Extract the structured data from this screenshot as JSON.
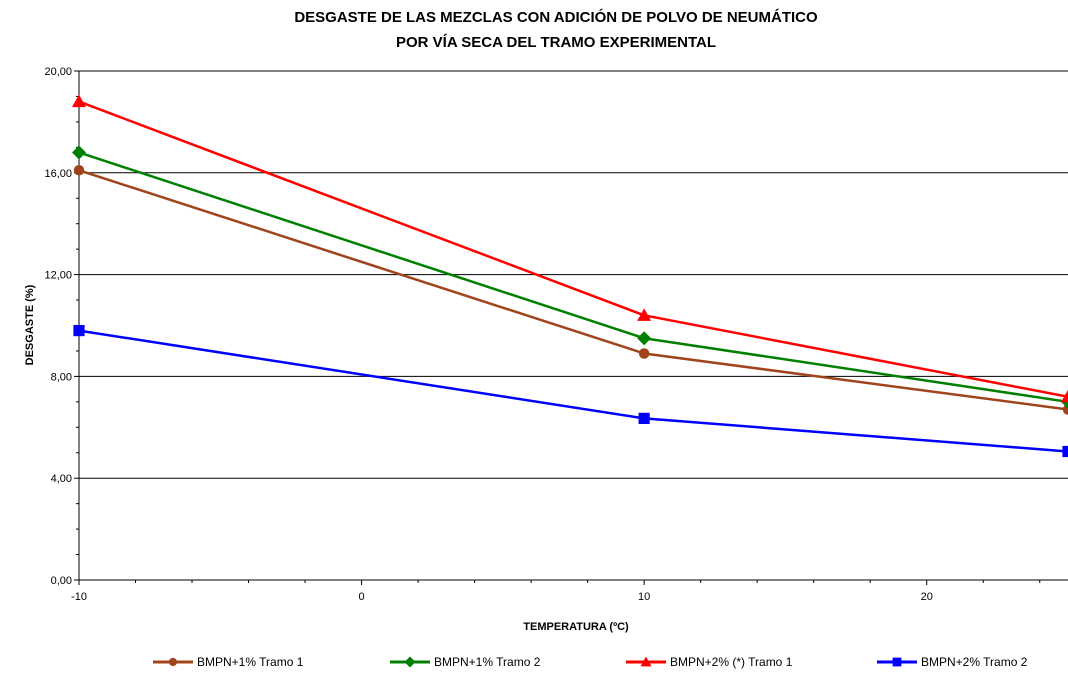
{
  "chart_data": {
    "type": "line",
    "title": [
      "DESGASTE DE LAS MEZCLAS CON ADICIÓN DE POLVO DE NEUMÁTICO",
      "POR VÍA SECA DEL TRAMO EXPERIMENTAL"
    ],
    "xlabel": "TEMPERATURA (ºC)",
    "ylabel": "DESGASTE (%)",
    "xlim": [
      -10,
      25
    ],
    "ylim": [
      0,
      20
    ],
    "x_ticks": [
      -10,
      0,
      10,
      20
    ],
    "x_tick_labels": [
      "-10",
      "0",
      "10",
      "20"
    ],
    "y_ticks": [
      0,
      4,
      8,
      12,
      16,
      20
    ],
    "y_tick_labels": [
      "0,00",
      "4,00",
      "8,00",
      "12,00",
      "16,00",
      "20,00"
    ],
    "grid": "horizontal",
    "legend_position": "bottom",
    "x": [
      -10,
      10,
      25
    ],
    "series": [
      {
        "name": "BMPN+1% Tramo 1",
        "color": "#a0441c",
        "marker": "circle",
        "values": [
          16.1,
          8.9,
          6.7
        ]
      },
      {
        "name": "BMPN+1% Tramo 2",
        "color": "#008000",
        "marker": "diamond",
        "values": [
          16.8,
          9.5,
          7.0
        ]
      },
      {
        "name": "BMPN+2% (*) Tramo 1",
        "color": "#ff0000",
        "marker": "triangle",
        "values": [
          18.8,
          10.4,
          7.2
        ]
      },
      {
        "name": "BMPN+2% Tramo 2",
        "color": "#0000ff",
        "marker": "square",
        "values": [
          9.8,
          6.35,
          5.05
        ]
      }
    ]
  }
}
